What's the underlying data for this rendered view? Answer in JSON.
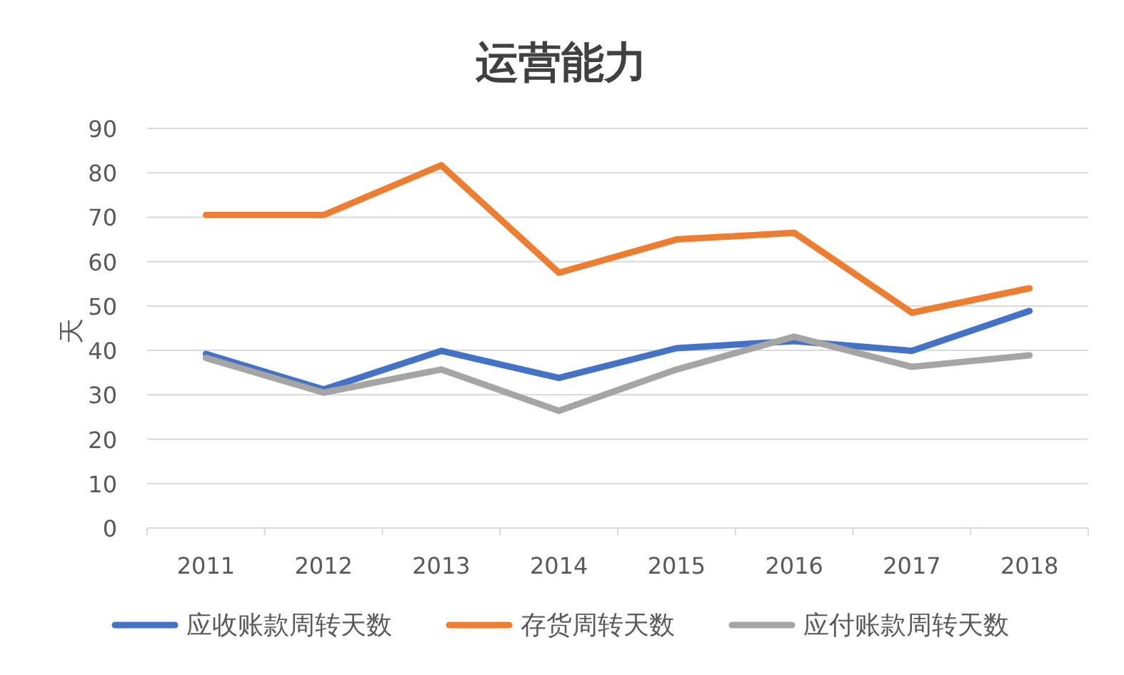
{
  "chart_data": {
    "type": "line",
    "title": "运营能力",
    "ylabel": "天",
    "categories": [
      "2011",
      "2012",
      "2013",
      "2014",
      "2015",
      "2016",
      "2017",
      "2018"
    ],
    "series": [
      {
        "name": "应收账款周转天数",
        "color": "#4472c4",
        "values": [
          39.2,
          31.2,
          39.9,
          33.8,
          40.5,
          42.1,
          39.9,
          48.9
        ]
      },
      {
        "name": "存货周转天数",
        "color": "#ed7d31",
        "values": [
          70.5,
          70.5,
          81.7,
          57.5,
          65,
          66.5,
          48.5,
          54
        ]
      },
      {
        "name": "应付账款周转天数",
        "color": "#a5a5a5",
        "values": [
          38.3,
          30.5,
          35.7,
          26.4,
          35.7,
          43.1,
          36.3,
          38.9
        ]
      }
    ],
    "ylim": [
      0,
      90
    ],
    "yticks": [
      0,
      10,
      20,
      30,
      40,
      50,
      60,
      70,
      80,
      90
    ],
    "grid": "y",
    "legend": "bottom",
    "marker": "none",
    "line_style": "solid"
  }
}
